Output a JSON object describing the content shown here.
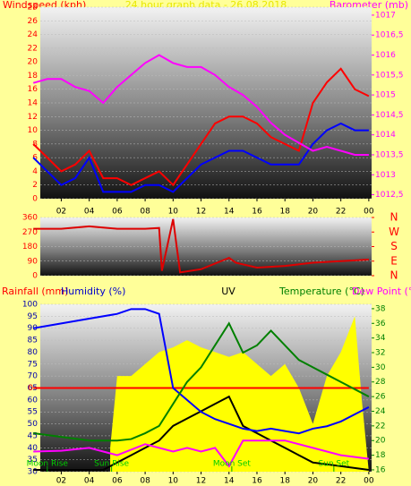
{
  "chart_data": [
    {
      "type": "line",
      "title": "Windspeed (kph)",
      "subtitle": "24 hour graph data - 26.08.2018",
      "y2label": "Barometer (mb)",
      "xlim": [
        0.5,
        24.2
      ],
      "xticks": [
        {
          "value": 2,
          "label": "02"
        },
        {
          "value": 4,
          "label": "04"
        },
        {
          "value": 6,
          "label": "06"
        },
        {
          "value": 8,
          "label": "08"
        },
        10,
        12,
        14,
        16,
        18,
        20,
        22,
        {
          "value": 24,
          "label": "00"
        }
      ],
      "ylim": [
        0,
        28
      ],
      "yticks": [
        0,
        2,
        4,
        6,
        8,
        10,
        12,
        14,
        16,
        18,
        20,
        22,
        24,
        26,
        28
      ],
      "y2lim": [
        1012.4,
        1017.2
      ],
      "y2ticks": [
        {
          "value": 1012.5,
          "label": "1012,5"
        },
        1013,
        {
          "value": 1013.5,
          "label": "1013,5"
        },
        1014,
        {
          "value": 1014.5,
          "label": "1014,5"
        },
        1015,
        {
          "value": 1015.5,
          "label": "1015,5"
        },
        1016,
        {
          "value": 1016.5,
          "label": "1016,5"
        },
        1017
      ],
      "series": [
        {
          "color": "#ff0000",
          "x": [
            0,
            1,
            2,
            3,
            4,
            5,
            6,
            7,
            8,
            9,
            10,
            11,
            12,
            13,
            14,
            15,
            16,
            17,
            18,
            19,
            20,
            21,
            22,
            23,
            24
          ],
          "values": [
            8,
            6,
            4,
            5,
            7,
            3,
            3,
            2,
            3,
            4,
            2,
            5,
            8,
            11,
            12,
            12,
            11,
            9,
            8,
            7,
            14,
            17,
            19,
            16,
            15
          ]
        },
        {
          "color": "#0000ff",
          "x": [
            0,
            1,
            2,
            3,
            4,
            5,
            6,
            7,
            8,
            9,
            10,
            11,
            12,
            13,
            14,
            15,
            16,
            17,
            18,
            19,
            20,
            21,
            22,
            23,
            24
          ],
          "values": [
            6,
            4,
            2,
            3,
            6,
            1,
            1,
            1,
            2,
            2,
            1,
            3,
            5,
            6,
            7,
            7,
            6,
            5,
            5,
            5,
            8,
            10,
            11,
            10,
            10
          ]
        },
        {
          "color": "#ff00ff",
          "axis": "y2",
          "x": [
            0,
            1,
            2,
            3,
            4,
            5,
            6,
            7,
            8,
            9,
            10,
            11,
            12,
            13,
            14,
            15,
            16,
            17,
            18,
            19,
            20,
            21,
            22,
            23,
            24
          ],
          "values": [
            1015.3,
            1015.4,
            1015.4,
            1015.2,
            1015.1,
            1014.8,
            1015.2,
            1015.5,
            1015.8,
            1016.0,
            1015.8,
            1015.7,
            1015.7,
            1015.5,
            1015.2,
            1015.0,
            1014.7,
            1014.3,
            1014.0,
            1013.8,
            1013.6,
            1013.7,
            1013.6,
            1013.5,
            1013.5
          ]
        }
      ]
    },
    {
      "type": "line",
      "xlim": [
        0.5,
        24.2
      ],
      "ylim": [
        0,
        360
      ],
      "yticks": [
        0,
        90,
        180,
        270,
        360
      ],
      "y2lim": [
        0,
        360
      ],
      "y2ticks": [
        {
          "value": 0,
          "label": "N"
        },
        {
          "value": 90,
          "label": "E"
        },
        {
          "value": 180,
          "label": "S"
        },
        {
          "value": 270,
          "label": "W"
        },
        {
          "value": 360,
          "label": "N"
        }
      ],
      "series": [
        {
          "color": "#dd0000",
          "x": [
            0,
            2,
            4,
            6,
            8,
            9,
            9.2,
            10,
            10.5,
            12,
            14,
            14.5,
            16,
            18,
            20,
            22,
            24
          ],
          "values": [
            290,
            290,
            305,
            290,
            290,
            295,
            30,
            350,
            20,
            40,
            110,
            80,
            50,
            60,
            80,
            90,
            100
          ]
        }
      ]
    },
    {
      "type": "line",
      "labels": [
        "Rainfall (mm)",
        "Humidity (%)",
        "UV",
        "Temperature (°C)",
        "Dew Point (°C)"
      ],
      "xlim": [
        0.5,
        24.2
      ],
      "xticks": [
        {
          "value": 2,
          "label": "02"
        },
        {
          "value": 4,
          "label": "04"
        },
        {
          "value": 6,
          "label": "06"
        },
        {
          "value": 8,
          "label": "08"
        },
        10,
        12,
        14,
        16,
        18,
        20,
        22,
        {
          "value": 24,
          "label": "00"
        }
      ],
      "ylim": [
        30,
        100
      ],
      "yticks": [
        30,
        35,
        40,
        45,
        50,
        55,
        60,
        65,
        70,
        75,
        80,
        85,
        90,
        95,
        100
      ],
      "y2lim": [
        15.75,
        38.6
      ],
      "y2ticks": [
        16,
        18,
        20,
        22,
        24,
        26,
        28,
        30,
        32,
        34,
        36,
        38
      ],
      "y3lim": [
        -1,
        1
      ],
      "y3ticks": [
        0
      ],
      "series": [
        {
          "color": "#ffff00",
          "fill": true,
          "x": [
            5.5,
            6,
            7,
            8,
            9,
            10,
            11,
            12,
            13,
            14,
            15,
            16,
            17,
            18,
            19,
            20,
            21,
            22,
            23,
            23.5,
            24
          ],
          "values": [
            40,
            70,
            70,
            75,
            80,
            82,
            85,
            82,
            80,
            78,
            80,
            75,
            70,
            75,
            65,
            50,
            70,
            80,
            95,
            60,
            30
          ]
        },
        {
          "color": "#ff0000",
          "axis": "y3",
          "x": [
            0,
            24
          ],
          "values": [
            0,
            0
          ]
        },
        {
          "color": "#000000",
          "axis": "y2",
          "x": [
            0,
            5,
            6,
            7,
            8,
            9,
            10,
            11,
            12,
            13,
            14,
            15,
            16,
            17,
            18,
            19,
            20,
            24
          ],
          "values": [
            16,
            16,
            17,
            18,
            19,
            20,
            22,
            23,
            24,
            25,
            26,
            22,
            21,
            20,
            19,
            18,
            17,
            16
          ]
        },
        {
          "color": "#0000ff",
          "x": [
            0,
            2,
            4,
            6,
            7,
            8,
            9,
            10,
            11,
            12,
            13,
            14,
            15,
            16,
            17,
            18,
            19,
            20,
            21,
            22,
            23,
            24
          ],
          "values": [
            90,
            92,
            94,
            96,
            98,
            98,
            96,
            65,
            60,
            55,
            52,
            50,
            48,
            47,
            48,
            47,
            46,
            48,
            49,
            51,
            54,
            57
          ]
        },
        {
          "color": "#008000",
          "axis": "y2",
          "x": [
            0,
            2,
            4,
            6,
            7,
            8,
            9,
            10,
            11,
            12,
            13,
            14,
            15,
            16,
            17,
            18,
            19,
            20,
            21,
            22,
            23,
            24
          ],
          "values": [
            21,
            20.5,
            20,
            20,
            20.2,
            21,
            22,
            25,
            28,
            30,
            33,
            36,
            32,
            33,
            35,
            33,
            31,
            30,
            29,
            28,
            27,
            26
          ]
        },
        {
          "color": "#ff00ff",
          "axis": "y2",
          "x": [
            0,
            2,
            4,
            6,
            8,
            9,
            10,
            11,
            12,
            13,
            14,
            15,
            16,
            18,
            20,
            22,
            24
          ],
          "values": [
            18.5,
            18.6,
            19,
            18,
            19.5,
            19,
            18.5,
            19,
            18.5,
            19,
            16.5,
            20,
            20,
            20,
            19,
            18,
            17.5
          ]
        }
      ],
      "events": [
        {
          "name": "Moon Rise",
          "x": 1
        },
        {
          "name": "Sun Rise",
          "x": 5.6
        },
        {
          "name": "Moon Set",
          "x": 14.2
        },
        {
          "name": "Sun Set",
          "x": 21.5
        }
      ]
    }
  ]
}
